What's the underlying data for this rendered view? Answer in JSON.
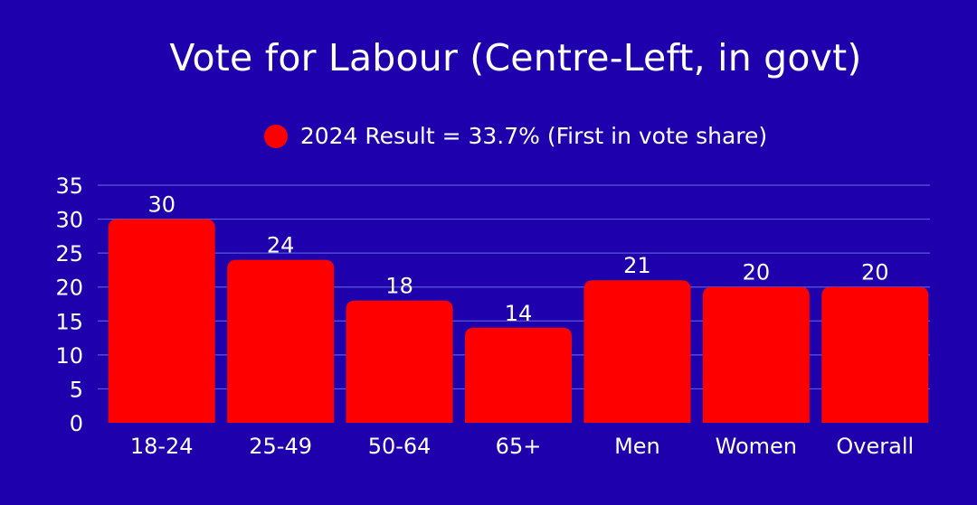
{
  "chart_data": {
    "type": "bar",
    "title": "Vote for Labour (Centre-Left, in govt)",
    "legend": "2024 Result = 33.7% (First in vote share)",
    "legend_placement": "top-center",
    "categories": [
      "18-24",
      "25-49",
      "50-64",
      "65+",
      "Men",
      "Women",
      "Overall"
    ],
    "values": [
      30,
      24,
      18,
      14,
      21,
      20,
      20
    ],
    "ylim": [
      0,
      35
    ],
    "yticks": [
      0,
      5,
      10,
      15,
      20,
      25,
      30,
      35
    ],
    "grid": true,
    "xlabel": "",
    "ylabel": ""
  },
  "colors": {
    "background": "#1f00ad",
    "bar": "#ff0000",
    "gridline": "#5a5ad8",
    "text": "#ffffff"
  }
}
